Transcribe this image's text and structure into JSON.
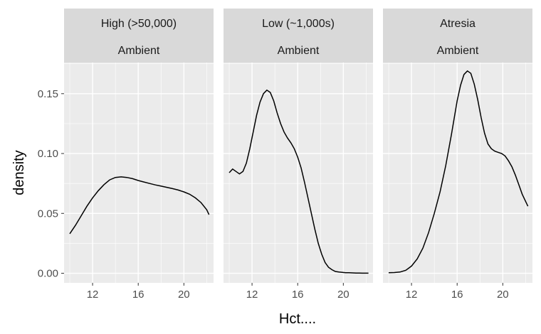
{
  "chart_data": {
    "type": "line",
    "subtype": "density",
    "xlabel": "Hct....",
    "ylabel": "density",
    "xlim": [
      9.5,
      22.6
    ],
    "ylim": [
      -0.008,
      0.176
    ],
    "x_ticks": [
      12,
      16,
      20
    ],
    "x_tick_labels": [
      "12",
      "16",
      "20"
    ],
    "y_ticks": [
      0.0,
      0.05,
      0.1,
      0.15
    ],
    "y_tick_labels": [
      "0.00",
      "0.05",
      "0.10",
      "0.15"
    ],
    "grid": true,
    "facets": [
      {
        "strip_top": "High (>50,000)",
        "strip_bottom": "Ambient",
        "x": [
          10.0,
          10.5,
          11.0,
          11.5,
          12.0,
          12.5,
          13.0,
          13.5,
          14.0,
          14.5,
          15.0,
          15.5,
          16.0,
          16.5,
          17.0,
          17.5,
          18.0,
          18.5,
          19.0,
          19.5,
          20.0,
          20.5,
          21.0,
          21.5,
          22.0,
          22.2
        ],
        "y": [
          0.033,
          0.04,
          0.048,
          0.056,
          0.063,
          0.069,
          0.074,
          0.078,
          0.08,
          0.0805,
          0.08,
          0.079,
          0.0775,
          0.0762,
          0.075,
          0.0738,
          0.0728,
          0.0718,
          0.0707,
          0.0695,
          0.068,
          0.066,
          0.063,
          0.059,
          0.053,
          0.049
        ]
      },
      {
        "strip_top": "Low (~1,000s)",
        "strip_bottom": "Ambient",
        "x": [
          10.0,
          10.3,
          10.6,
          10.9,
          11.2,
          11.5,
          11.8,
          12.1,
          12.4,
          12.7,
          13.0,
          13.3,
          13.6,
          13.9,
          14.2,
          14.5,
          14.8,
          15.1,
          15.4,
          15.7,
          16.0,
          16.3,
          16.6,
          16.9,
          17.2,
          17.5,
          17.8,
          18.1,
          18.4,
          18.7,
          19.0,
          19.3,
          19.6,
          19.9,
          20.2,
          20.5,
          20.8,
          21.1,
          21.4,
          21.7,
          22.0,
          22.2
        ],
        "y": [
          0.084,
          0.087,
          0.085,
          0.083,
          0.085,
          0.092,
          0.104,
          0.118,
          0.132,
          0.143,
          0.15,
          0.153,
          0.151,
          0.144,
          0.134,
          0.125,
          0.118,
          0.113,
          0.109,
          0.104,
          0.097,
          0.088,
          0.076,
          0.063,
          0.05,
          0.037,
          0.025,
          0.016,
          0.009,
          0.005,
          0.003,
          0.0015,
          0.001,
          0.0007,
          0.0005,
          0.0004,
          0.0003,
          0.0002,
          0.0002,
          0.0001,
          0.0001,
          0.0001
        ]
      },
      {
        "strip_top": "Atresia",
        "strip_bottom": "Ambient",
        "x": [
          10.0,
          10.5,
          11.0,
          11.5,
          12.0,
          12.5,
          13.0,
          13.5,
          14.0,
          14.5,
          15.0,
          15.5,
          16.0,
          16.3,
          16.6,
          16.9,
          17.2,
          17.5,
          17.8,
          18.1,
          18.4,
          18.7,
          19.0,
          19.3,
          19.6,
          19.9,
          20.2,
          20.5,
          20.8,
          21.1,
          21.4,
          21.7,
          22.0,
          22.2
        ],
        "y": [
          0.0005,
          0.0006,
          0.001,
          0.0025,
          0.006,
          0.012,
          0.021,
          0.034,
          0.05,
          0.068,
          0.09,
          0.116,
          0.144,
          0.157,
          0.166,
          0.169,
          0.167,
          0.158,
          0.145,
          0.13,
          0.117,
          0.108,
          0.104,
          0.102,
          0.101,
          0.1,
          0.098,
          0.094,
          0.089,
          0.082,
          0.074,
          0.066,
          0.06,
          0.056
        ]
      }
    ]
  }
}
